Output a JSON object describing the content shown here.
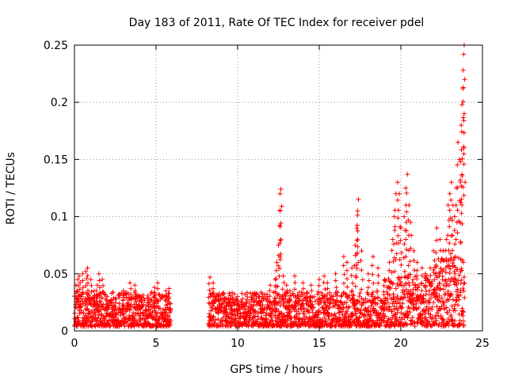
{
  "chart_data": {
    "type": "scatter",
    "title": "Day 183 of 2011, Rate Of TEC Index for receiver pdel",
    "xlabel": "GPS time / hours",
    "ylabel": "ROTI / TECUs",
    "xlim": [
      0,
      25
    ],
    "ylim": [
      0,
      0.25
    ],
    "x_ticks": [
      0,
      5,
      10,
      15,
      20,
      25
    ],
    "x_tick_labels": [
      "0",
      "5",
      "10",
      "15",
      "20",
      "25"
    ],
    "y_ticks": [
      0,
      0.05,
      0.1,
      0.15,
      0.2,
      0.25
    ],
    "y_tick_labels": [
      "0",
      "0.05",
      "0.1",
      "0.15",
      "0.2",
      "0.25"
    ],
    "grid": true,
    "marker": "+",
    "marker_color": "#ff0000",
    "series": [
      {
        "name": "ROTI",
        "note": "dense cloud, baseline ~0.005-0.03, gap 5.9h-8.2h",
        "points": [
          [
            0.1,
            0.04
          ],
          [
            0.2,
            0.045
          ],
          [
            0.3,
            0.048
          ],
          [
            0.5,
            0.05
          ],
          [
            0.7,
            0.052
          ],
          [
            0.8,
            0.055
          ],
          [
            1.0,
            0.045
          ],
          [
            1.2,
            0.035
          ],
          [
            1.4,
            0.04
          ],
          [
            1.5,
            0.05
          ],
          [
            1.7,
            0.045
          ],
          [
            2.0,
            0.03
          ],
          [
            2.3,
            0.025
          ],
          [
            2.5,
            0.028
          ],
          [
            3.0,
            0.035
          ],
          [
            3.4,
            0.042
          ],
          [
            3.7,
            0.04
          ],
          [
            4.0,
            0.03
          ],
          [
            4.5,
            0.028
          ],
          [
            4.9,
            0.038
          ],
          [
            5.1,
            0.042
          ],
          [
            5.6,
            0.035
          ],
          [
            5.8,
            0.037
          ],
          [
            8.3,
            0.047
          ],
          [
            8.5,
            0.042
          ],
          [
            8.8,
            0.03
          ],
          [
            9.3,
            0.025
          ],
          [
            9.6,
            0.028
          ],
          [
            10.0,
            0.03
          ],
          [
            10.5,
            0.025
          ],
          [
            11.0,
            0.025
          ],
          [
            11.5,
            0.03
          ],
          [
            11.8,
            0.03
          ],
          [
            12.0,
            0.04
          ],
          [
            12.3,
            0.045
          ],
          [
            12.4,
            0.06
          ],
          [
            12.5,
            0.075
          ],
          [
            12.6,
            0.105
          ],
          [
            12.6,
            0.12
          ],
          [
            12.65,
            0.124
          ],
          [
            12.8,
            0.048
          ],
          [
            13.0,
            0.04
          ],
          [
            13.2,
            0.035
          ],
          [
            13.5,
            0.048
          ],
          [
            14.0,
            0.042
          ],
          [
            14.5,
            0.04
          ],
          [
            15.0,
            0.045
          ],
          [
            15.3,
            0.048
          ],
          [
            15.5,
            0.042
          ],
          [
            16.0,
            0.05
          ],
          [
            16.5,
            0.065
          ],
          [
            16.7,
            0.06
          ],
          [
            17.0,
            0.055
          ],
          [
            17.2,
            0.075
          ],
          [
            17.3,
            0.09
          ],
          [
            17.35,
            0.105
          ],
          [
            17.4,
            0.115
          ],
          [
            17.6,
            0.07
          ],
          [
            18.0,
            0.05
          ],
          [
            18.3,
            0.065
          ],
          [
            18.6,
            0.055
          ],
          [
            19.0,
            0.045
          ],
          [
            19.3,
            0.06
          ],
          [
            19.5,
            0.08
          ],
          [
            19.6,
            0.1
          ],
          [
            19.7,
            0.12
          ],
          [
            19.8,
            0.13
          ],
          [
            19.9,
            0.12
          ],
          [
            20.0,
            0.09
          ],
          [
            20.2,
            0.1
          ],
          [
            20.3,
            0.125
          ],
          [
            20.4,
            0.137
          ],
          [
            20.5,
            0.11
          ],
          [
            20.6,
            0.095
          ],
          [
            20.8,
            0.07
          ],
          [
            21.0,
            0.06
          ],
          [
            21.3,
            0.055
          ],
          [
            21.5,
            0.05
          ],
          [
            21.8,
            0.055
          ],
          [
            22.0,
            0.07
          ],
          [
            22.2,
            0.09
          ],
          [
            22.4,
            0.08
          ],
          [
            22.6,
            0.07
          ],
          [
            22.8,
            0.08
          ],
          [
            22.9,
            0.11
          ],
          [
            23.0,
            0.12
          ],
          [
            23.1,
            0.13
          ],
          [
            23.2,
            0.11
          ],
          [
            23.3,
            0.1
          ],
          [
            23.4,
            0.125
          ],
          [
            23.5,
            0.165
          ],
          [
            23.6,
            0.15
          ],
          [
            23.65,
            0.148
          ],
          [
            23.7,
            0.18
          ],
          [
            23.75,
            0.198
          ],
          [
            23.8,
            0.212
          ],
          [
            23.82,
            0.228
          ],
          [
            23.85,
            0.242
          ],
          [
            23.88,
            0.25
          ]
        ]
      }
    ]
  }
}
